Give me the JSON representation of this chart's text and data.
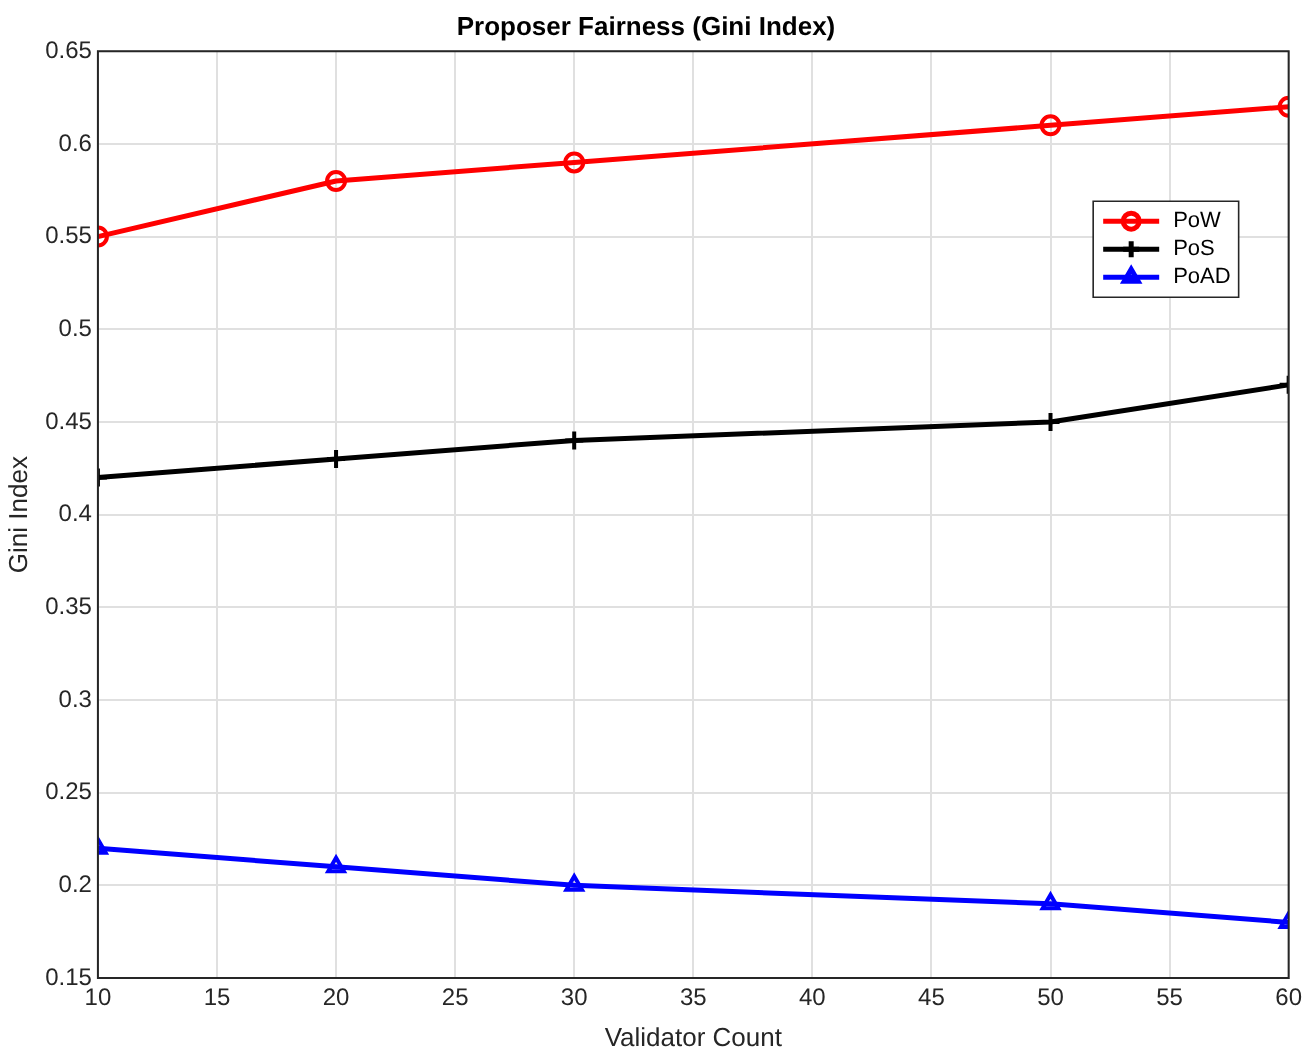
{
  "chart_data": {
    "type": "line",
    "title": "Proposer Fairness (Gini Index)",
    "xlabel": "Validator Count",
    "ylabel": "Gini Index",
    "x": [
      10,
      20,
      30,
      50,
      60
    ],
    "series": [
      {
        "name": "PoW",
        "color": "#ff0000",
        "marker": "circle",
        "values": [
          0.55,
          0.58,
          0.59,
          0.61,
          0.62
        ]
      },
      {
        "name": "PoS",
        "color": "#000000",
        "marker": "cross",
        "values": [
          0.42,
          0.43,
          0.44,
          0.45,
          0.47
        ]
      },
      {
        "name": "PoAD",
        "color": "#0000ff",
        "marker": "triangle",
        "values": [
          0.22,
          0.21,
          0.2,
          0.19,
          0.18
        ]
      }
    ],
    "xlim": [
      10,
      60
    ],
    "xticks": [
      10,
      15,
      20,
      25,
      30,
      35,
      40,
      45,
      50,
      55,
      60
    ],
    "ylim": [
      0.15,
      0.65
    ],
    "yticks": [
      0.15,
      0.2,
      0.25,
      0.3,
      0.35,
      0.4,
      0.45,
      0.5,
      0.55,
      0.6,
      0.65
    ],
    "grid": true,
    "legend": "top right",
    "line_style": "solid"
  }
}
